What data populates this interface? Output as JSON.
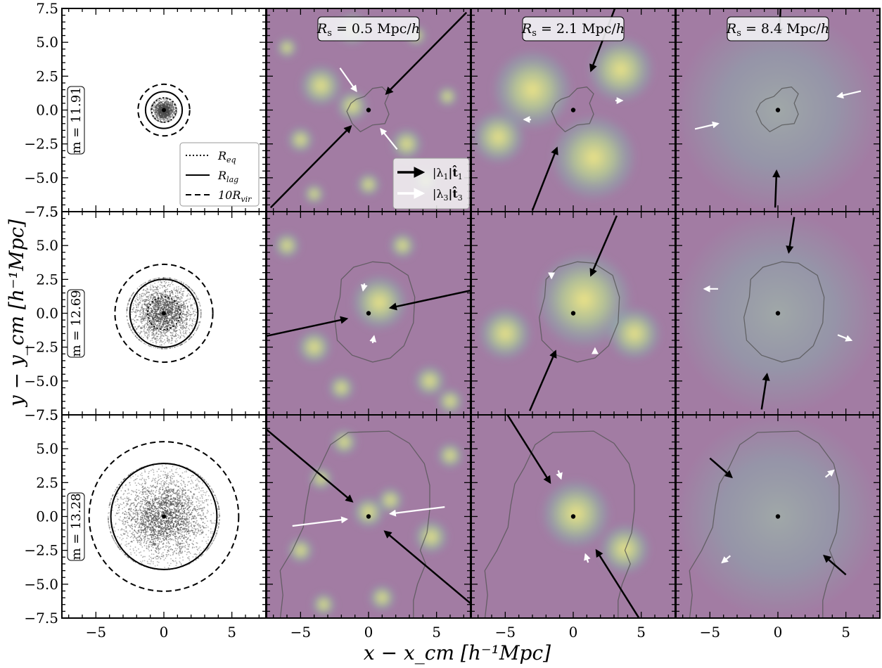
{
  "chart_data": {
    "type": "scatter",
    "title": "",
    "xlabel": "x − x_cm [h⁻¹Mpc]",
    "ylabel": "y − y_cm [h⁻¹Mpc]",
    "xlim": [
      -7.5,
      7.5
    ],
    "ylim": [
      -7.5,
      7.5
    ],
    "xticks": [
      -5,
      0,
      5
    ],
    "xtick_labels": [
      "−5",
      "0",
      "5"
    ],
    "yticks": [
      -7.5,
      -5.0,
      -2.5,
      0.0,
      2.5,
      5.0,
      7.5
    ],
    "ytick_labels": [
      "−7.5",
      "−5.0",
      "−2.5",
      "0.0",
      "2.5",
      "5.0",
      "7.5"
    ],
    "columns": [
      {
        "label": ""
      },
      {
        "label": "R_s = 0.5 Mpc/h",
        "label_parts": [
          "R",
          "s",
          " = 0.5 Mpc/",
          "h"
        ]
      },
      {
        "label": "R_s = 2.1 Mpc/h",
        "label_parts": [
          "R",
          "s",
          " = 2.1 Mpc/",
          "h"
        ]
      },
      {
        "label": "R_s = 8.4 Mpc/h",
        "label_parts": [
          "R",
          "s",
          " = 8.4 Mpc/",
          "h"
        ]
      }
    ],
    "rows": [
      {
        "mass_label": "m = 11.91",
        "radii": {
          "R_eq": 0.9,
          "R_lag": 1.35,
          "10R_vir": 1.9
        },
        "particle_spread": 0.9,
        "contour": [
          [
            1.0,
            1.7
          ],
          [
            1.5,
            1.2
          ],
          [
            1.2,
            0.5
          ],
          [
            1.5,
            -0.3
          ],
          [
            1.2,
            -1.0
          ],
          [
            0.3,
            -1.1
          ],
          [
            -0.6,
            -1.6
          ],
          [
            -1.2,
            -1.0
          ],
          [
            -1.6,
            -0.1
          ],
          [
            -1.3,
            0.5
          ],
          [
            -0.9,
            0.8
          ],
          [
            -0.3,
            1.0
          ],
          [
            0.3,
            1.6
          ]
        ],
        "panels": [
          {
            "black_arrows": [
              [
                7.2,
                7.2,
                1.3,
                1.2
              ],
              [
                -7.2,
                -7.2,
                -1.3,
                -1.2
              ]
            ],
            "white_arrows": [
              [
                -2.1,
                3.1,
                -0.9,
                1.4
              ],
              [
                2.1,
                -2.9,
                0.9,
                -1.4
              ]
            ],
            "blobs": [
              {
                "x": -3.5,
                "y": 1.8,
                "r": 1.6
              },
              {
                "x": -1.2,
                "y": 0.3,
                "r": 1.2
              },
              {
                "x": 2.8,
                "y": -2.5,
                "r": 1.2
              },
              {
                "x": -5.0,
                "y": -2.2,
                "r": 1.0
              },
              {
                "x": -1.2,
                "y": 6.0,
                "r": 1.2
              },
              {
                "x": 3.5,
                "y": 5.5,
                "r": 0.8
              },
              {
                "x": 5.8,
                "y": 1.0,
                "r": 0.8
              },
              {
                "x": 0.0,
                "y": -5.5,
                "r": 0.9
              },
              {
                "x": 4.2,
                "y": -5.2,
                "r": 0.8
              },
              {
                "x": -6.0,
                "y": 4.6,
                "r": 0.8
              },
              {
                "x": -4.0,
                "y": -6.2,
                "r": 0.8
              }
            ]
          },
          {
            "black_arrows": [
              [
                3.1,
                7.6,
                1.3,
                2.9
              ],
              [
                -3.0,
                -7.4,
                -1.2,
                -2.8
              ]
            ],
            "white_arrows": [
              [
                -3.1,
                -0.7,
                -3.6,
                -0.7
              ],
              [
                3.1,
                0.7,
                3.6,
                0.7
              ]
            ],
            "blobs": [
              {
                "x": -3.0,
                "y": 1.5,
                "r": 3.0
              },
              {
                "x": 1.5,
                "y": -3.5,
                "r": 3.2
              },
              {
                "x": -5.5,
                "y": -2.0,
                "r": 2.0
              },
              {
                "x": 3.5,
                "y": 3.0,
                "r": 2.5
              }
            ]
          },
          {
            "black_arrows": [
              [
                0.2,
                7.6,
                0.1,
                5.6
              ],
              [
                -0.2,
                -7.2,
                -0.1,
                -4.5
              ]
            ],
            "white_arrows": [
              [
                -6.1,
                -1.4,
                -4.4,
                -1.0
              ],
              [
                6.1,
                1.4,
                4.4,
                1.0
              ]
            ],
            "blobs": [
              {
                "x": 0.0,
                "y": 0.0,
                "r": 7.5
              }
            ]
          }
        ]
      },
      {
        "mass_label": "m = 12.69",
        "radii": {
          "R_eq": 1.2,
          "R_lag": 2.5,
          "10R_vir": 3.6
        },
        "particle_spread": 2.6,
        "contour": [
          [
            1.5,
            3.7
          ],
          [
            2.9,
            2.8
          ],
          [
            3.4,
            1.2
          ],
          [
            3.3,
            -0.7
          ],
          [
            2.6,
            -2.4
          ],
          [
            1.6,
            -3.3
          ],
          [
            0.3,
            -3.6
          ],
          [
            -1.2,
            -3.1
          ],
          [
            -2.3,
            -2.0
          ],
          [
            -2.5,
            -0.3
          ],
          [
            -2.1,
            1.2
          ],
          [
            -2.0,
            2.5
          ],
          [
            -1.1,
            3.4
          ],
          [
            0.3,
            3.8
          ]
        ],
        "panels": [
          {
            "black_arrows": [
              [
                -7.6,
                -1.7,
                -1.6,
                -0.4
              ],
              [
                7.6,
                1.7,
                1.6,
                0.4
              ]
            ],
            "white_arrows": [
              [
                -0.3,
                2.2,
                -0.4,
                1.7
              ],
              [
                0.3,
                -2.2,
                0.4,
                -1.7
              ]
            ],
            "blobs": [
              {
                "x": 0.8,
                "y": 0.8,
                "r": 2.1
              },
              {
                "x": -4.0,
                "y": -2.5,
                "r": 1.3
              },
              {
                "x": 4.5,
                "y": -5.0,
                "r": 1.2
              },
              {
                "x": 2.5,
                "y": 5.0,
                "r": 1.0
              },
              {
                "x": -6.0,
                "y": 5.0,
                "r": 1.0
              },
              {
                "x": 6.0,
                "y": -6.5,
                "r": 1.0
              },
              {
                "x": -2.0,
                "y": -5.5,
                "r": 1.0
              }
            ]
          },
          {
            "black_arrows": [
              [
                3.2,
                7.2,
                1.3,
                2.8
              ],
              [
                -3.2,
                -7.2,
                -1.3,
                -2.8
              ]
            ],
            "white_arrows": [
              [
                -1.6,
                2.7,
                -1.6,
                2.6
              ],
              [
                1.6,
                -2.7,
                1.6,
                -2.6
              ]
            ],
            "blobs": [
              {
                "x": 0.8,
                "y": 1.0,
                "r": 3.6
              },
              {
                "x": -5.0,
                "y": -1.5,
                "r": 2.0
              },
              {
                "x": 4.5,
                "y": -1.5,
                "r": 2.0
              }
            ]
          },
          {
            "black_arrows": [
              [
                1.2,
                7.1,
                0.8,
                4.5
              ],
              [
                -1.2,
                -7.1,
                -0.8,
                -4.5
              ]
            ],
            "white_arrows": [
              [
                -4.4,
                1.8,
                -5.4,
                1.8
              ],
              [
                4.4,
                -1.6,
                5.4,
                -2.0
              ]
            ],
            "blobs": [
              {
                "x": 0.0,
                "y": 0.0,
                "r": 7.5
              }
            ]
          }
        ]
      },
      {
        "mass_label": "m = 13.28",
        "radii": {
          "R_eq": 1.8,
          "R_lag": 3.9,
          "10R_vir": 5.5
        },
        "particle_spread": 3.9,
        "contour": [
          [
            -6.5,
            -7.6
          ],
          [
            -6.3,
            -5.8
          ],
          [
            -6.5,
            -4.0
          ],
          [
            -5.6,
            -2.5
          ],
          [
            -4.8,
            -0.8
          ],
          [
            -4.6,
            0.8
          ],
          [
            -4.3,
            2.4
          ],
          [
            -3.6,
            3.6
          ],
          [
            -2.8,
            5.3
          ],
          [
            -1.5,
            6.2
          ],
          [
            1.5,
            6.3
          ],
          [
            3.0,
            5.4
          ],
          [
            4.1,
            3.9
          ],
          [
            4.5,
            2.3
          ],
          [
            4.5,
            0.5
          ],
          [
            4.3,
            -1.2
          ],
          [
            3.8,
            -2.5
          ],
          [
            4.2,
            -3.5
          ],
          [
            3.6,
            -5.0
          ],
          [
            3.3,
            -6.2
          ],
          [
            3.3,
            -7.6
          ]
        ],
        "panels": [
          {
            "black_arrows": [
              [
                -7.6,
                6.5,
                -1.2,
                1.1
              ],
              [
                7.6,
                -6.5,
                1.2,
                -1.1
              ]
            ],
            "white_arrows": [
              [
                -5.6,
                -0.7,
                -1.6,
                -0.2
              ],
              [
                5.6,
                0.7,
                1.6,
                0.2
              ]
            ],
            "blobs": [
              {
                "x": 0.0,
                "y": 0.3,
                "r": 1.2
              },
              {
                "x": 1.6,
                "y": 1.2,
                "r": 1.0
              },
              {
                "x": 4.6,
                "y": -1.5,
                "r": 1.3
              },
              {
                "x": -1.8,
                "y": 5.5,
                "r": 1.0
              },
              {
                "x": -3.5,
                "y": 2.8,
                "r": 0.9
              },
              {
                "x": -5.0,
                "y": -2.5,
                "r": 1.0
              },
              {
                "x": 1.0,
                "y": -6.0,
                "r": 1.0
              },
              {
                "x": -3.3,
                "y": -6.5,
                "r": 0.9
              },
              {
                "x": 6.0,
                "y": 4.5,
                "r": 1.0
              }
            ]
          },
          {
            "black_arrows": [
              [
                -4.9,
                7.6,
                -1.7,
                2.5
              ],
              [
                4.9,
                -7.6,
                1.7,
                -2.5
              ]
            ],
            "white_arrows": [
              [
                -1.1,
                3.4,
                -0.9,
                2.8
              ],
              [
                1.1,
                -3.4,
                0.9,
                -2.8
              ]
            ],
            "blobs": [
              {
                "x": 0.2,
                "y": 0.2,
                "r": 2.6
              },
              {
                "x": 3.8,
                "y": -2.4,
                "r": 1.9
              }
            ]
          },
          {
            "black_arrows": [
              [
                -5.0,
                4.3,
                -3.4,
                2.9
              ],
              [
                5.0,
                -4.3,
                3.4,
                -2.9
              ]
            ],
            "white_arrows": [
              [
                3.5,
                2.9,
                4.1,
                3.4
              ],
              [
                -3.5,
                -2.9,
                -4.1,
                -3.4
              ]
            ],
            "blobs": [
              {
                "x": 0.0,
                "y": 0.0,
                "r": 7.5
              }
            ]
          }
        ]
      }
    ],
    "legend_radii": [
      {
        "style": "dotted",
        "label": "R_eq",
        "base": "R",
        "sub": "eq"
      },
      {
        "style": "solid",
        "label": "R_lag",
        "base": "R",
        "sub": "lag"
      },
      {
        "style": "dashed",
        "label": "10R_vir",
        "base": "10R",
        "sub": "vir"
      }
    ],
    "legend_arrows": [
      {
        "color": "black",
        "label": "|λ1|t̂1",
        "parts": [
          "|λ",
          "1",
          "|t̂",
          "1"
        ]
      },
      {
        "color": "white",
        "label": "|λ3|t̂3",
        "parts": [
          "|λ",
          "3",
          "|t̂",
          "3"
        ]
      }
    ]
  },
  "colors": {
    "field_low": "#a27ca3",
    "field_mid": "#82bcb0",
    "field_high": "#f7f082",
    "particles": "#4a4a4a",
    "contour": "#555555"
  }
}
